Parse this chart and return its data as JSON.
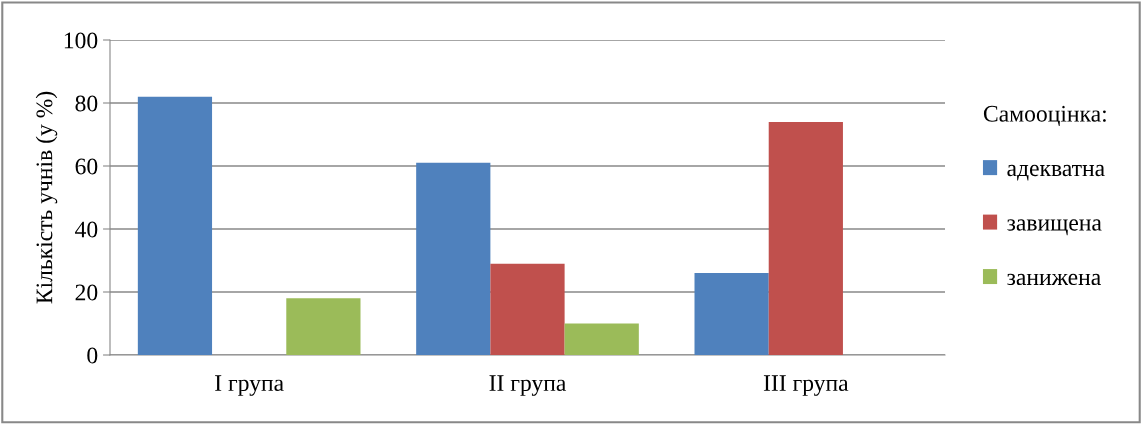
{
  "chart_data": {
    "type": "bar",
    "ylabel": "Кількість учнів (у %)",
    "legend_title": "Самооцінка:",
    "categories": [
      "I група",
      "II група",
      "III група"
    ],
    "series": [
      {
        "name": "адекватна",
        "color": "#4f81bd",
        "values": [
          82,
          61,
          26
        ]
      },
      {
        "name": "завищена",
        "color": "#c0504d",
        "values": [
          null,
          29,
          74
        ]
      },
      {
        "name": "занижена",
        "color": "#9bbb59",
        "values": [
          18,
          10,
          null
        ]
      }
    ],
    "ylim": [
      0,
      100
    ],
    "yticks": [
      0,
      20,
      40,
      60,
      80,
      100
    ],
    "grid": "y",
    "legend": "right"
  }
}
